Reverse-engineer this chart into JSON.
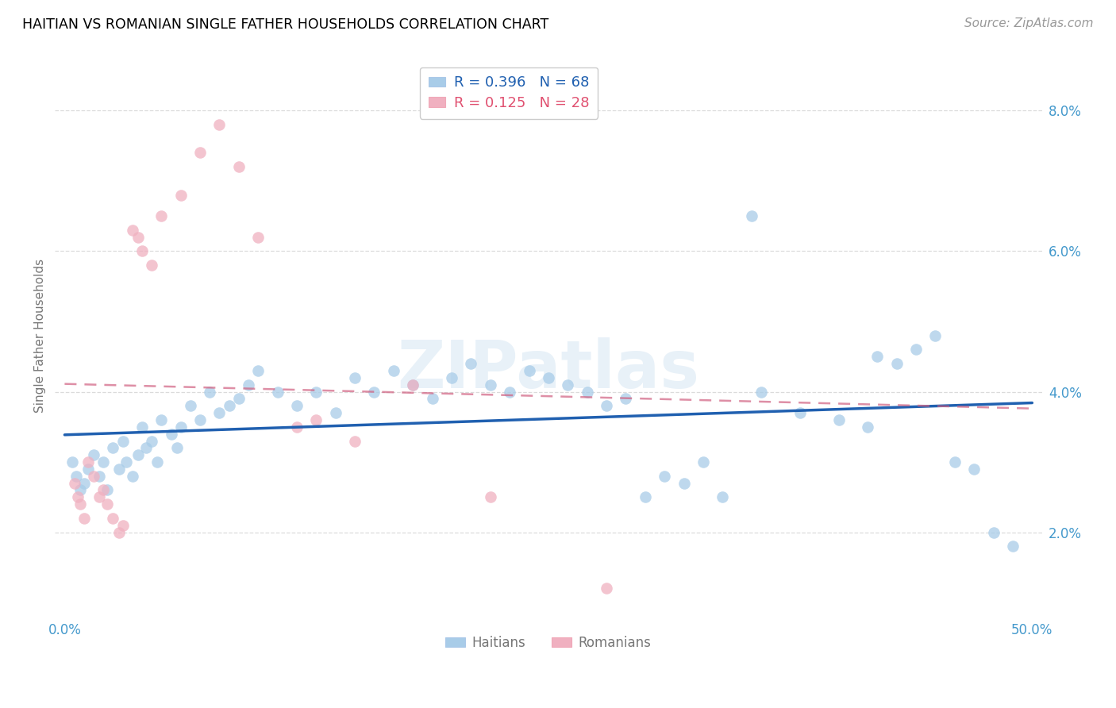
{
  "title": "HAITIAN VS ROMANIAN SINGLE FATHER HOUSEHOLDS CORRELATION CHART",
  "source": "Source: ZipAtlas.com",
  "ylabel": "Single Father Households",
  "xlim": [
    -0.005,
    0.505
  ],
  "ylim": [
    0.008,
    0.088
  ],
  "xticks": [
    0.0,
    0.1,
    0.2,
    0.3,
    0.4,
    0.5
  ],
  "xticklabels": [
    "0.0%",
    "",
    "",
    "",
    "",
    "50.0%"
  ],
  "yticks": [
    0.02,
    0.04,
    0.06,
    0.08
  ],
  "yticklabels": [
    "2.0%",
    "4.0%",
    "6.0%",
    "8.0%"
  ],
  "haitian_color": "#a8cce8",
  "romanian_color": "#f0b0c0",
  "haitian_line_color": "#2060b0",
  "romanian_line_color": "#d06080",
  "background_color": "#ffffff",
  "grid_color": "#d8d8d8",
  "R_haitian": 0.396,
  "N_haitian": 68,
  "R_romanian": 0.125,
  "N_romanian": 28,
  "haitian_x": [
    0.004,
    0.006,
    0.008,
    0.01,
    0.012,
    0.015,
    0.018,
    0.02,
    0.022,
    0.025,
    0.028,
    0.03,
    0.032,
    0.035,
    0.038,
    0.04,
    0.042,
    0.045,
    0.048,
    0.05,
    0.055,
    0.058,
    0.06,
    0.065,
    0.07,
    0.075,
    0.08,
    0.085,
    0.09,
    0.095,
    0.1,
    0.11,
    0.12,
    0.13,
    0.14,
    0.15,
    0.16,
    0.17,
    0.18,
    0.19,
    0.2,
    0.21,
    0.22,
    0.23,
    0.24,
    0.25,
    0.26,
    0.27,
    0.28,
    0.29,
    0.3,
    0.31,
    0.32,
    0.33,
    0.34,
    0.36,
    0.38,
    0.4,
    0.42,
    0.43,
    0.44,
    0.45,
    0.46,
    0.47,
    0.48,
    0.49,
    0.355,
    0.415
  ],
  "haitian_y": [
    0.03,
    0.028,
    0.026,
    0.027,
    0.029,
    0.031,
    0.028,
    0.03,
    0.026,
    0.032,
    0.029,
    0.033,
    0.03,
    0.028,
    0.031,
    0.035,
    0.032,
    0.033,
    0.03,
    0.036,
    0.034,
    0.032,
    0.035,
    0.038,
    0.036,
    0.04,
    0.037,
    0.038,
    0.039,
    0.041,
    0.043,
    0.04,
    0.038,
    0.04,
    0.037,
    0.042,
    0.04,
    0.043,
    0.041,
    0.039,
    0.042,
    0.044,
    0.041,
    0.04,
    0.043,
    0.042,
    0.041,
    0.04,
    0.038,
    0.039,
    0.025,
    0.028,
    0.027,
    0.03,
    0.025,
    0.04,
    0.037,
    0.036,
    0.045,
    0.044,
    0.046,
    0.048,
    0.03,
    0.029,
    0.02,
    0.018,
    0.065,
    0.035
  ],
  "romanian_x": [
    0.005,
    0.007,
    0.008,
    0.01,
    0.012,
    0.015,
    0.018,
    0.02,
    0.022,
    0.025,
    0.028,
    0.03,
    0.035,
    0.038,
    0.04,
    0.045,
    0.05,
    0.06,
    0.07,
    0.08,
    0.09,
    0.1,
    0.12,
    0.13,
    0.15,
    0.18,
    0.22,
    0.28
  ],
  "romanian_y": [
    0.027,
    0.025,
    0.024,
    0.022,
    0.03,
    0.028,
    0.025,
    0.026,
    0.024,
    0.022,
    0.02,
    0.021,
    0.063,
    0.062,
    0.06,
    0.058,
    0.065,
    0.068,
    0.074,
    0.078,
    0.072,
    0.062,
    0.035,
    0.036,
    0.033,
    0.041,
    0.025,
    0.012
  ],
  "watermark_text": "ZIPatlas",
  "legend_R_color": "#2060b0",
  "legend_N_color": "#e05070",
  "tick_color": "#4499cc"
}
